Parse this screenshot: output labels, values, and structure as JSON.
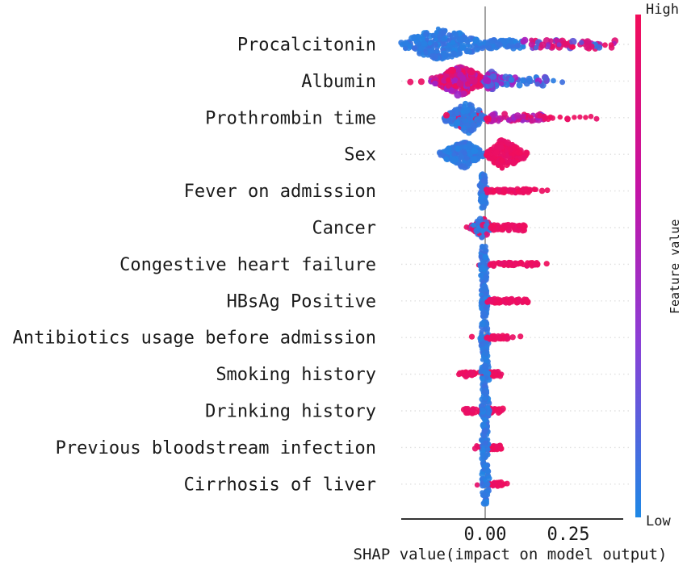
{
  "chart_data": {
    "type": "beeswarm",
    "title": "",
    "xlabel": "SHAP value(impact on model output)",
    "xticks": [
      {
        "value": 0.0,
        "label": "0.00"
      },
      {
        "value": 0.25,
        "label": "0.25"
      }
    ],
    "x_axis_range": [
      -0.253,
      0.415
    ],
    "grid": "dotted-horizontal-rows",
    "colorbar": {
      "label": "Feature value",
      "high_label": "High",
      "low_label": "Low",
      "high_color": "#f20d5a",
      "low_color": "#1e88e5",
      "mid_color": "#a31fc6"
    },
    "colors": {
      "blue": "#1e88e5",
      "purple": "#a31fc6",
      "red": "#f20d5a",
      "zero_line": "#999999",
      "axis": "#333333",
      "gridline": "#e0e0e0",
      "text": "#1a1a1a"
    },
    "features": [
      {
        "name": "Procalcitonin",
        "clusters": [
          {
            "kind": "violin",
            "x0": -0.258,
            "x1": 0.015,
            "peak": -0.135,
            "spread": 21,
            "count": 230,
            "color": "blue",
            "r": [
              2.6,
              4.6
            ]
          },
          {
            "kind": "streak",
            "x0": 0.0,
            "x1": 0.115,
            "spread": 5,
            "count": 55,
            "color": "blue",
            "r": [
              2.8,
              4.2
            ]
          },
          {
            "kind": "streak",
            "x0": 0.115,
            "x1": 0.39,
            "spread": 5.5,
            "count": 60,
            "color": "mix",
            "r": [
              3,
              5
            ]
          }
        ]
      },
      {
        "name": "Albumin",
        "clusters": [
          {
            "kind": "dots",
            "xs": [
              -0.225,
              -0.192
            ],
            "color": "red",
            "r": [
              3.8,
              4.2
            ]
          },
          {
            "kind": "violin",
            "x0": -0.163,
            "x1": 0.008,
            "peak": -0.072,
            "spread": 19,
            "count": 210,
            "color": "redPurple",
            "r": [
              2.8,
              4.8
            ]
          },
          {
            "kind": "violin",
            "x0": -0.005,
            "x1": 0.048,
            "peak": 0.015,
            "spread": 13,
            "count": 70,
            "color": "purpleBlue",
            "r": [
              2.8,
              4.6
            ]
          },
          {
            "kind": "streak",
            "x0": 0.048,
            "x1": 0.185,
            "spread": 5.5,
            "count": 50,
            "color": "bluePurple",
            "r": [
              2.8,
              4.4
            ]
          },
          {
            "kind": "dots",
            "xs": [
              0.205,
              0.232
            ],
            "color": "blue",
            "r": [
              3.4,
              3.8
            ]
          }
        ]
      },
      {
        "name": "Prothrombin time",
        "clusters": [
          {
            "kind": "violin",
            "x0": -0.123,
            "x1": 0.004,
            "peak": -0.052,
            "spread": 20,
            "count": 160,
            "color": "blueFewRed",
            "r": [
              2.8,
              4.6
            ]
          },
          {
            "kind": "streak",
            "x0": 0.004,
            "x1": 0.175,
            "spread": 5,
            "count": 65,
            "color": "purpleRed",
            "r": [
              2.8,
              4.4
            ]
          },
          {
            "kind": "streak",
            "x0": 0.178,
            "x1": 0.248,
            "spread": 2,
            "count": 9,
            "color": "red",
            "r": [
              3,
              4
            ]
          },
          {
            "kind": "dots",
            "xs": [
              0.268,
              0.285,
              0.302,
              0.318,
              0.335
            ],
            "color": "red",
            "r": [
              3.2,
              3.6
            ]
          }
        ]
      },
      {
        "name": "Sex",
        "clusters": [
          {
            "kind": "violin",
            "x0": -0.137,
            "x1": -0.002,
            "peak": -0.062,
            "spread": 17,
            "count": 170,
            "color": "blue",
            "r": [
              2.8,
              4.4
            ]
          },
          {
            "kind": "violin",
            "x0": 0.002,
            "x1": 0.127,
            "peak": 0.052,
            "spread": 19,
            "count": 170,
            "color": "red",
            "r": [
              2.8,
              4.4
            ]
          }
        ]
      },
      {
        "name": "Fever on admission",
        "clusters": [
          {
            "kind": "vblob",
            "x": -0.006,
            "spread": 21,
            "count": 75,
            "color": "blue",
            "r": [
              2.8,
              4
            ]
          },
          {
            "kind": "streak",
            "x0": 0.004,
            "x1": 0.153,
            "spread": 2.4,
            "count": 75,
            "color": "red",
            "r": [
              3,
              3.8
            ]
          },
          {
            "kind": "dots",
            "xs": [
              0.171,
              0.187
            ],
            "color": "red",
            "r": [
              3.4,
              3.8
            ]
          }
        ]
      },
      {
        "name": "Cancer",
        "clusters": [
          {
            "kind": "dots",
            "xs": [
              -0.056
            ],
            "color": "red",
            "r": [
              3.2,
              3.6
            ]
          },
          {
            "kind": "violin",
            "x0": -0.047,
            "x1": 0.022,
            "peak": -0.008,
            "spread": 13,
            "count": 75,
            "color": "blueRedMix",
            "r": [
              2.8,
              4.4
            ]
          },
          {
            "kind": "streak",
            "x0": 0.018,
            "x1": 0.118,
            "spread": 3.4,
            "count": 50,
            "color": "red",
            "r": [
              3,
              4.2
            ]
          }
        ]
      },
      {
        "name": "Congestive heart failure",
        "clusters": [
          {
            "kind": "dots",
            "xs": [
              -0.02
            ],
            "color": "red",
            "r": [
              3,
              3.4
            ]
          },
          {
            "kind": "vblob",
            "x": -0.004,
            "spread": 23,
            "count": 70,
            "color": "blue",
            "r": [
              2.8,
              4
            ]
          },
          {
            "kind": "streak",
            "x0": 0.015,
            "x1": 0.158,
            "spread": 2.4,
            "count": 62,
            "color": "red",
            "r": [
              3,
              3.8
            ]
          },
          {
            "kind": "dots",
            "xs": [
              0.185
            ],
            "color": "red",
            "r": [
              3.4,
              3.8
            ]
          }
        ]
      },
      {
        "name": "HBsAg Positive",
        "clusters": [
          {
            "kind": "vblob",
            "x": -0.003,
            "spread": 21,
            "count": 65,
            "color": "blue",
            "r": [
              2.8,
              4
            ]
          },
          {
            "kind": "streak",
            "x0": 0.007,
            "x1": 0.128,
            "spread": 2.4,
            "count": 58,
            "color": "red",
            "r": [
              3,
              3.8
            ]
          }
        ]
      },
      {
        "name": "Antibiotics usage before admission",
        "clusters": [
          {
            "kind": "dots",
            "xs": [
              -0.04
            ],
            "color": "red",
            "r": [
              3.2,
              3.6
            ]
          },
          {
            "kind": "vblob",
            "x": -0.002,
            "spread": 21,
            "count": 62,
            "color": "blue",
            "r": [
              2.8,
              4
            ]
          },
          {
            "kind": "streak",
            "x0": 0.004,
            "x1": 0.068,
            "spread": 2.4,
            "count": 36,
            "color": "red",
            "r": [
              3,
              3.8
            ]
          },
          {
            "kind": "dots",
            "xs": [
              0.083,
              0.106
            ],
            "color": "red",
            "r": [
              3.3,
              3.7
            ]
          }
        ]
      },
      {
        "name": "Smoking history",
        "clusters": [
          {
            "kind": "streak",
            "x0": -0.079,
            "x1": 0.049,
            "spread": 2.8,
            "count": 60,
            "color": "red",
            "r": [
              3,
              4
            ]
          },
          {
            "kind": "vblob",
            "x": 0.0,
            "spread": 25,
            "count": 58,
            "color": "blue",
            "r": [
              2.8,
              4
            ]
          }
        ]
      },
      {
        "name": "Drinking history",
        "clusters": [
          {
            "kind": "streak",
            "x0": -0.064,
            "x1": 0.053,
            "spread": 2.8,
            "count": 55,
            "color": "red",
            "r": [
              3,
              4
            ]
          },
          {
            "kind": "vblob",
            "x": 0.0,
            "spread": 26,
            "count": 58,
            "color": "blue",
            "r": [
              2.8,
              4
            ]
          }
        ]
      },
      {
        "name": "Previous bloodstream infection",
        "clusters": [
          {
            "kind": "streak",
            "x0": -0.03,
            "x1": 0.049,
            "spread": 2.8,
            "count": 42,
            "color": "red",
            "r": [
              3,
              4
            ]
          },
          {
            "kind": "vblob",
            "x": 0.0,
            "spread": 27,
            "count": 58,
            "color": "blue",
            "r": [
              2.8,
              4
            ]
          }
        ]
      },
      {
        "name": "Cirrhosis of liver",
        "clusters": [
          {
            "kind": "dots",
            "xs": [
              -0.024
            ],
            "color": "red",
            "r": [
              3.1,
              3.5
            ]
          },
          {
            "kind": "streak",
            "x0": 0.008,
            "x1": 0.058,
            "spread": 2.4,
            "count": 26,
            "color": "red",
            "r": [
              3,
              3.8
            ]
          },
          {
            "kind": "dots",
            "xs": [
              0.066
            ],
            "color": "red",
            "r": [
              3.2,
              3.6
            ]
          },
          {
            "kind": "vblob",
            "x": 0.0,
            "spread": 24,
            "count": 52,
            "color": "blue",
            "r": [
              2.8,
              4
            ]
          }
        ]
      }
    ]
  }
}
